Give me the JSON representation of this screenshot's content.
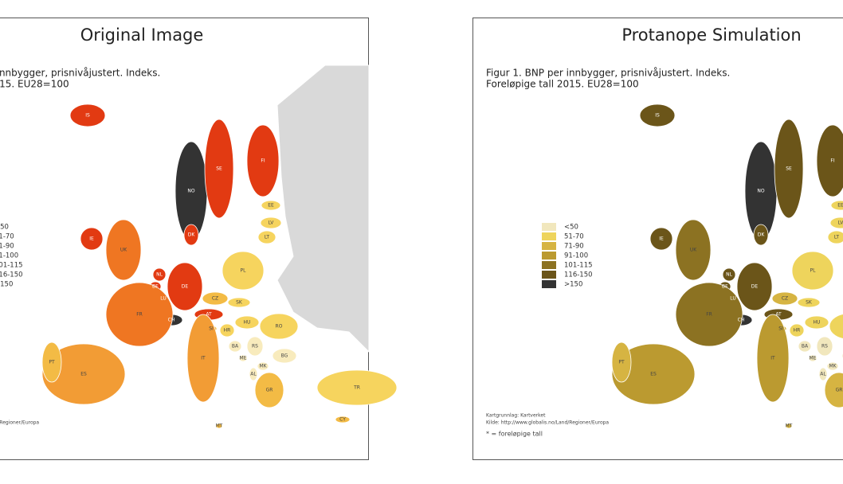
{
  "panels": [
    {
      "title": "Original Image",
      "legend_colors": [
        "#f8ebbd",
        "#f6d45e",
        "#f3bb45",
        "#f29c35",
        "#ef7622",
        "#e23a12",
        "#333333"
      ]
    },
    {
      "title": "Protanope Simulation",
      "legend_colors": [
        "#f1e7bd",
        "#eed45c",
        "#d6b442",
        "#bb9a30",
        "#8c7222",
        "#6b5519",
        "#333333"
      ]
    }
  ],
  "caption": [
    "Figur 1. BNP per innbygger, prisnivåjustert. Indeks.",
    "Foreløpige tall 2015. EU28=100"
  ],
  "legend_labels": [
    "<50",
    "51-70",
    "71-90",
    "91-100",
    "101-115",
    "116-150",
    ">150"
  ],
  "map_labels": [
    "IS",
    "NO",
    "SE",
    "FI",
    "EE",
    "LV",
    "LT",
    "IE",
    "UK",
    "NL",
    "BE",
    "LU",
    "DE",
    "DK",
    "PL",
    "CZ",
    "SK",
    "AT",
    "CH",
    "FR",
    "HU",
    "RO",
    "SI",
    "HR",
    "BA",
    "RS",
    "BG",
    "ME",
    "MK",
    "AL",
    "IT",
    "ES",
    "PT",
    "GR",
    "TR",
    "MT",
    "CY"
  ],
  "sources": [
    "Kartgrunnlag: Kartverket",
    "Kilde: http://www.globalis.no/Land/Regioner/Europa",
    "* = foreløpige tall"
  ]
}
